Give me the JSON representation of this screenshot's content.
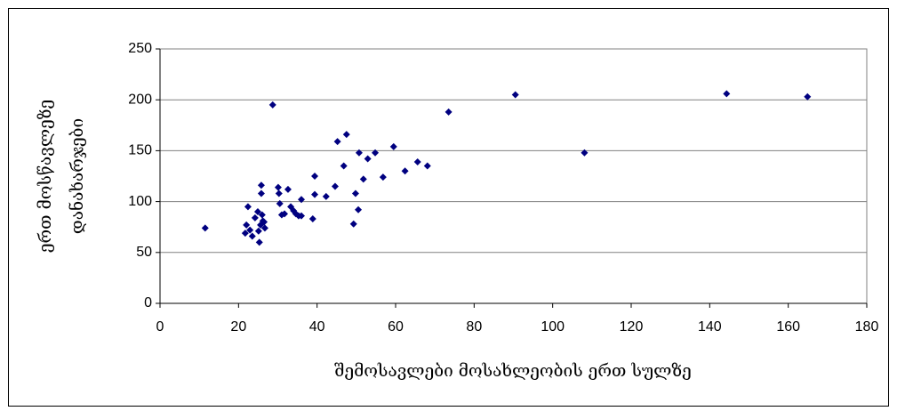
{
  "chart_data": {
    "type": "scatter",
    "x_label": "შემოსავლები მოსახლეობის ერთ სულზე",
    "y_label": [
      "ერთ მოსწავლეზე",
      "დანახარჯები"
    ],
    "color": "#000080",
    "grid": true,
    "xlim": [
      0,
      180
    ],
    "xticks": [
      0,
      20,
      40,
      60,
      80,
      100,
      120,
      140,
      160,
      180
    ],
    "ylim": [
      0,
      250
    ],
    "yticks": [
      0,
      50,
      100,
      150,
      200,
      250
    ],
    "series": [
      {
        "x": [
          11.5,
          21.7,
          22,
          22.4,
          22.9,
          23.5,
          24.2,
          24.9,
          25.1,
          25.3,
          25.6,
          25.8,
          25.8,
          26,
          26.2,
          26.5,
          26.7,
          28.7,
          30.1,
          30.3,
          30.5,
          31,
          31.7,
          32.6,
          33.3,
          34,
          34.6,
          35.3,
          36,
          36,
          38.9,
          39.4,
          39.4,
          42.3,
          44.6,
          45.2,
          46.8,
          47.5,
          49.3,
          49.8,
          50.5,
          50.7,
          51.8,
          52.9,
          54.8,
          56.8,
          59.5,
          62.4,
          65.6,
          68.1,
          73.5,
          90.5,
          108.1,
          144.3,
          164.9
        ],
        "values": [
          74,
          69,
          77,
          95,
          72,
          66,
          84,
          90,
          71,
          60,
          77,
          116,
          108,
          87,
          81,
          80,
          74,
          195,
          114,
          108,
          98,
          87,
          88,
          112,
          95,
          91,
          88,
          86,
          102,
          86,
          83,
          125,
          107,
          105,
          115,
          159,
          135,
          166,
          78,
          108,
          92,
          148,
          122,
          142,
          148,
          124,
          154,
          130,
          139,
          135,
          188,
          205,
          148,
          206,
          203
        ]
      }
    ]
  }
}
